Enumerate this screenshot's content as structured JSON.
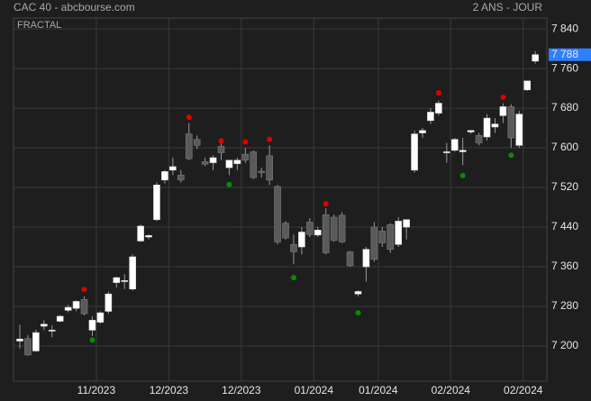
{
  "chart_data": {
    "type": "candlestick",
    "title": "CAC 40 - abcbourse.com",
    "subtitle": "2 ANS - JOUR",
    "indicator": "FRACTAL",
    "categories": [
      null,
      null,
      null,
      null,
      null,
      null,
      null,
      null,
      null,
      null,
      "11/2023",
      null,
      null,
      null,
      null,
      null,
      null,
      null,
      null,
      "12/2023",
      null,
      null,
      null,
      null,
      null,
      null,
      null,
      null,
      "12/2023",
      null,
      null,
      null,
      null,
      null,
      null,
      null,
      null,
      "01/2024",
      null,
      null,
      null,
      null,
      null,
      null,
      null,
      "01/2024",
      null,
      null,
      null,
      null,
      null,
      null,
      null,
      null,
      "02/2024",
      null,
      null,
      null,
      null,
      null,
      null,
      null,
      null,
      "02/2024",
      null
    ],
    "open": [
      7210,
      7215,
      7190,
      7240,
      7230,
      7250,
      7272,
      7276,
      7294,
      7232,
      7248,
      7270,
      7328,
      7330,
      7315,
      7412,
      7420,
      7455,
      7535,
      7555,
      7545,
      7628,
      7617,
      7572,
      7570,
      7603,
      7560,
      7568,
      7587,
      7592,
      7553,
      7584,
      7522,
      7448,
      7405,
      7400,
      7450,
      7424,
      7465,
      7460,
      7464,
      7390,
      7305,
      7360,
      7440,
      7432,
      7445,
      7405,
      7440,
      7555,
      7630,
      7655,
      7670,
      7590,
      7595,
      7592,
      7632,
      7625,
      7622,
      7642,
      7665,
      7683,
      7605,
      7717,
      7775
    ],
    "high": [
      7243,
      7222,
      7233,
      7252,
      7242,
      7262,
      7283,
      7292,
      7300,
      7260,
      7270,
      7310,
      7340,
      7345,
      7385,
      7445,
      7425,
      7530,
      7555,
      7580,
      7555,
      7650,
      7625,
      7580,
      7585,
      7615,
      7575,
      7580,
      7600,
      7595,
      7560,
      7605,
      7525,
      7452,
      7425,
      7440,
      7458,
      7440,
      7478,
      7465,
      7470,
      7392,
      7312,
      7400,
      7450,
      7440,
      7448,
      7460,
      7455,
      7635,
      7640,
      7680,
      7695,
      7610,
      7620,
      7620,
      7635,
      7630,
      7668,
      7660,
      7690,
      7688,
      7675,
      7735,
      7795
    ],
    "low": [
      7195,
      7180,
      7188,
      7232,
      7218,
      7248,
      7268,
      7270,
      7262,
      7220,
      7245,
      7265,
      7318,
      7315,
      7312,
      7410,
      7415,
      7452,
      7528,
      7545,
      7530,
      7575,
      7598,
      7563,
      7555,
      7575,
      7545,
      7555,
      7570,
      7537,
      7540,
      7525,
      7405,
      7415,
      7365,
      7385,
      7420,
      7420,
      7385,
      7410,
      7408,
      7360,
      7300,
      7330,
      7370,
      7400,
      7388,
      7400,
      7415,
      7550,
      7620,
      7648,
      7665,
      7570,
      7592,
      7565,
      7628,
      7605,
      7615,
      7630,
      7650,
      7600,
      7600,
      7715,
      7770
    ],
    "close": [
      7214,
      7182,
      7227,
      7244,
      7232,
      7260,
      7278,
      7290,
      7265,
      7252,
      7267,
      7305,
      7338,
      7332,
      7380,
      7442,
      7423,
      7525,
      7552,
      7562,
      7535,
      7578,
      7605,
      7567,
      7580,
      7590,
      7575,
      7575,
      7575,
      7540,
      7550,
      7535,
      7410,
      7418,
      7390,
      7430,
      7425,
      7434,
      7388,
      7413,
      7410,
      7362,
      7310,
      7395,
      7375,
      7408,
      7395,
      7452,
      7455,
      7628,
      7635,
      7672,
      7690,
      7592,
      7617,
      7595,
      7635,
      7610,
      7660,
      7648,
      7683,
      7620,
      7668,
      7735,
      7788
    ],
    "fractal_up": [
      null,
      null,
      null,
      null,
      null,
      null,
      null,
      null,
      7314,
      null,
      null,
      null,
      null,
      null,
      null,
      null,
      null,
      null,
      null,
      null,
      null,
      7662,
      null,
      null,
      null,
      7614,
      null,
      null,
      7612,
      null,
      null,
      7617,
      null,
      null,
      null,
      null,
      null,
      null,
      7487,
      null,
      null,
      null,
      null,
      null,
      null,
      null,
      null,
      null,
      null,
      null,
      null,
      null,
      7711,
      null,
      null,
      null,
      null,
      null,
      null,
      null,
      7702,
      null,
      null,
      null,
      null
    ],
    "fractal_down": [
      null,
      null,
      null,
      null,
      null,
      null,
      null,
      null,
      null,
      7212,
      null,
      null,
      null,
      null,
      null,
      null,
      null,
      null,
      null,
      null,
      null,
      null,
      null,
      null,
      null,
      null,
      7526,
      null,
      null,
      null,
      null,
      null,
      null,
      null,
      7338,
      null,
      null,
      null,
      null,
      null,
      null,
      null,
      7267,
      null,
      null,
      null,
      null,
      null,
      null,
      null,
      null,
      null,
      null,
      null,
      null,
      7544,
      null,
      null,
      null,
      null,
      null,
      7585,
      null,
      null,
      null
    ],
    "up_color": "#ffffff",
    "down_color": "#5a5a5a",
    "fractal_up_color": "#e00000",
    "fractal_down_color": "#0a8a0a",
    "last_price": {
      "value": 7788,
      "label": "7 788"
    },
    "ylim": [
      7129,
      7862
    ],
    "yticks": [
      {
        "value": 7200,
        "label": "7 200"
      },
      {
        "value": 7280,
        "label": "7 280"
      },
      {
        "value": 7360,
        "label": "7 360"
      },
      {
        "value": 7440,
        "label": "7 440"
      },
      {
        "value": 7520,
        "label": "7 520"
      },
      {
        "value": 7600,
        "label": "7 600"
      },
      {
        "value": 7680,
        "label": "7 680"
      },
      {
        "value": 7760,
        "label": "7 760"
      },
      {
        "value": 7840,
        "label": "7 840"
      }
    ],
    "grid": true
  }
}
